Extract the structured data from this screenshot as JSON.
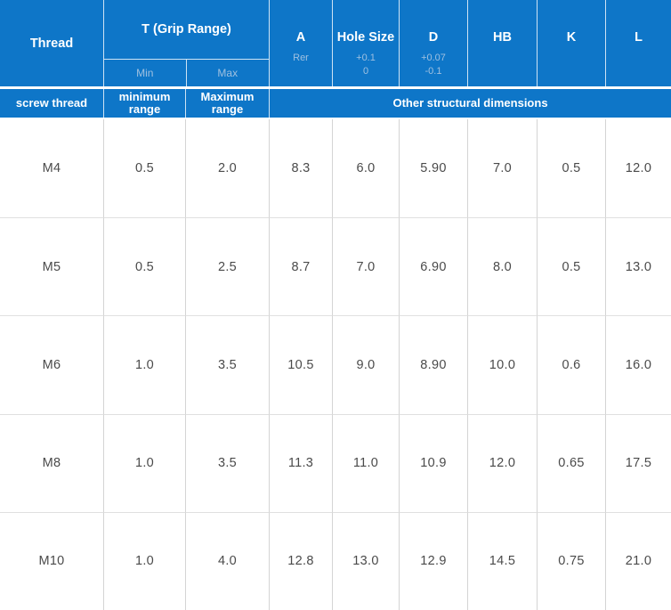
{
  "header": {
    "thread_label": "Thread",
    "grip_range": {
      "label": "T  (Grip Range)",
      "min_label": "Min",
      "max_label": "Max"
    },
    "columns": [
      {
        "label": "A",
        "sub": [
          "Rer"
        ]
      },
      {
        "label": "Hole Size",
        "sub": [
          "+0.1",
          "0"
        ]
      },
      {
        "label": "D",
        "sub": [
          "+0.07",
          "-0.1"
        ]
      },
      {
        "label": "HB",
        "sub": []
      },
      {
        "label": "K",
        "sub": []
      },
      {
        "label": "L",
        "sub": []
      }
    ]
  },
  "subheader": {
    "screw_thread": "screw thread",
    "minimum_range": "minimum range",
    "maximum_range": "Maximum range",
    "other": "Other structural dimensions"
  },
  "rows": [
    {
      "thread": "M4",
      "values": [
        "0.5",
        "2.0",
        "8.3",
        "6.0",
        "5.90",
        "7.0",
        "0.5",
        "12.0"
      ]
    },
    {
      "thread": "M5",
      "values": [
        "0.5",
        "2.5",
        "8.7",
        "7.0",
        "6.90",
        "8.0",
        "0.5",
        "13.0"
      ]
    },
    {
      "thread": "M6",
      "values": [
        "1.0",
        "3.5",
        "10.5",
        "9.0",
        "8.90",
        "10.0",
        "0.6",
        "16.0"
      ]
    },
    {
      "thread": "M8",
      "values": [
        "1.0",
        "3.5",
        "11.3",
        "11.0",
        "10.9",
        "12.0",
        "0.65",
        "17.5"
      ]
    },
    {
      "thread": "M10",
      "values": [
        "1.0",
        "4.0",
        "12.8",
        "13.0",
        "12.9",
        "14.5",
        "0.75",
        "21.0"
      ]
    }
  ],
  "colors": {
    "header_blue": "#0e76c8",
    "header_subtext": "#9fc0e0",
    "header_divider": "rgba(255,255,255,0.8)",
    "grid_line_vertical": "#d4d4d4",
    "grid_line_horizontal": "#e0e0e0",
    "data_text": "#4a4a4a"
  }
}
